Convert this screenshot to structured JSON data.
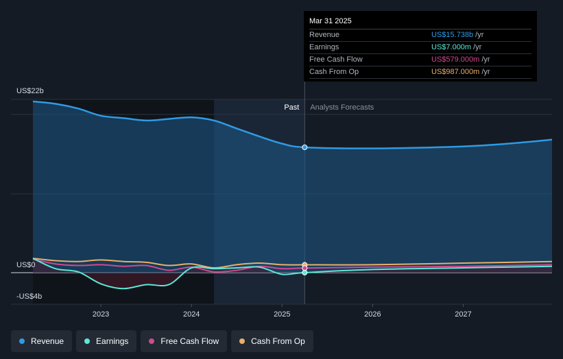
{
  "tooltip": {
    "date": "Mar 31 2025",
    "rows": [
      {
        "label": "Revenue",
        "value": "US$15.738b",
        "unit": "/yr",
        "color": "#2e9be5"
      },
      {
        "label": "Earnings",
        "value": "US$7.000m",
        "unit": "/yr",
        "color": "#5ee8d6"
      },
      {
        "label": "Free Cash Flow",
        "value": "US$579.000m",
        "unit": "/yr",
        "color": "#d1498f"
      },
      {
        "label": "Cash From Op",
        "value": "US$987.000m",
        "unit": "/yr",
        "color": "#e8b06a"
      }
    ]
  },
  "legend": [
    {
      "label": "Revenue",
      "color": "#2e9be5"
    },
    {
      "label": "Earnings",
      "color": "#5ee8d6"
    },
    {
      "label": "Free Cash Flow",
      "color": "#d1498f"
    },
    {
      "label": "Cash From Op",
      "color": "#e8b06a"
    }
  ],
  "chart_data": {
    "type": "line",
    "y_tick_labels": [
      "US$22b",
      "US$0",
      "-US$4b"
    ],
    "ylim": [
      -4,
      22
    ],
    "x_ticks": [
      2023,
      2024,
      2025,
      2026,
      2027
    ],
    "xlim": [
      2022.25,
      2027.98
    ],
    "past_label": "Past",
    "forecast_label": "Analysts Forecasts",
    "divider_x": 2025.25,
    "series": [
      {
        "name": "Revenue",
        "color": "#2e9be5",
        "x": [
          2022.25,
          2022.5,
          2022.75,
          2023.0,
          2023.25,
          2023.5,
          2023.75,
          2024.0,
          2024.25,
          2024.5,
          2024.75,
          2025.0,
          2025.25,
          2026.0,
          2027.0,
          2027.5,
          2027.98
        ],
        "y": [
          21.5,
          21.2,
          20.6,
          19.7,
          19.4,
          19.1,
          19.3,
          19.5,
          19.1,
          18.1,
          17.1,
          16.2,
          15.738,
          15.6,
          15.85,
          16.2,
          16.7
        ]
      },
      {
        "name": "Earnings",
        "color": "#5ee8d6",
        "x": [
          2022.25,
          2022.5,
          2022.75,
          2023.0,
          2023.25,
          2023.5,
          2023.75,
          2024.0,
          2024.25,
          2024.5,
          2024.75,
          2025.0,
          2025.25,
          2026.0,
          2027.0,
          2027.98
        ],
        "y": [
          1.8,
          0.5,
          0.1,
          -1.4,
          -2.0,
          -1.5,
          -1.5,
          0.6,
          0.5,
          0.6,
          0.7,
          -0.2,
          0.007,
          0.4,
          0.6,
          0.8
        ]
      },
      {
        "name": "Free Cash Flow",
        "color": "#d1498f",
        "x": [
          2022.25,
          2022.5,
          2022.75,
          2023.0,
          2023.25,
          2023.5,
          2023.75,
          2024.0,
          2024.25,
          2024.5,
          2024.75,
          2025.0,
          2025.25,
          2026.0,
          2027.0,
          2027.98
        ],
        "y": [
          1.7,
          1.1,
          0.9,
          1.0,
          0.8,
          0.9,
          0.3,
          0.7,
          0.1,
          0.3,
          0.8,
          0.5,
          0.579,
          0.7,
          0.8,
          1.0
        ]
      },
      {
        "name": "Cash From Op",
        "color": "#e8b06a",
        "x": [
          2022.25,
          2022.5,
          2022.75,
          2023.0,
          2023.25,
          2023.5,
          2023.75,
          2024.0,
          2024.25,
          2024.5,
          2024.75,
          2025.0,
          2025.25,
          2026.0,
          2027.0,
          2027.98
        ],
        "y": [
          1.8,
          1.5,
          1.4,
          1.6,
          1.4,
          1.3,
          0.9,
          1.1,
          0.6,
          1.0,
          1.2,
          1.0,
          0.987,
          1.0,
          1.2,
          1.4
        ]
      }
    ]
  }
}
